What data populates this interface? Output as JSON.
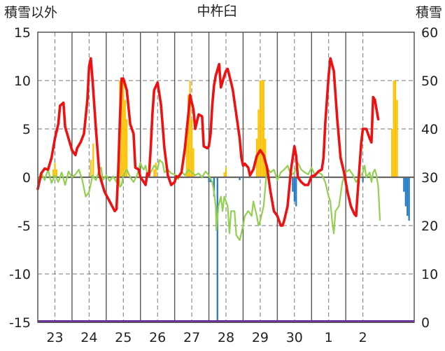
{
  "chart_data": {
    "type": "line",
    "title": "中杵臼",
    "ylabel_left": "積雪以外",
    "ylabel_right": "積雪",
    "y_left_ticks": [
      "15",
      "10",
      "5",
      "0",
      "-5",
      "-10",
      "-15"
    ],
    "y_right_ticks": [
      "60",
      "50",
      "40",
      "30",
      "20",
      "10",
      "0"
    ],
    "ylim_left": [
      -15,
      15
    ],
    "ylim_right": [
      0,
      60
    ],
    "x_tick_labels": [
      "23",
      "24",
      "25",
      "26",
      "27",
      "28",
      "29",
      "30",
      "1",
      "2"
    ],
    "xlim": [
      22.5,
      33.5
    ],
    "grid": true,
    "colors": {
      "red_line": "#ee1111",
      "green_line": "#92d050",
      "orange_bars": "#ffc000",
      "blue_bars": "#1f78c1",
      "snow_baseline": "#7030a0",
      "axis": "#555555",
      "grid": "#777777"
    },
    "red_series": [
      [
        22.5,
        -1.2
      ],
      [
        22.6,
        0.4
      ],
      [
        22.7,
        0.9
      ],
      [
        22.8,
        0.8
      ],
      [
        22.9,
        2.0
      ],
      [
        23.0,
        4.0
      ],
      [
        23.1,
        5.5
      ],
      [
        23.15,
        7.4
      ],
      [
        23.25,
        7.7
      ],
      [
        23.3,
        5.2
      ],
      [
        23.4,
        4.0
      ],
      [
        23.5,
        2.8
      ],
      [
        23.6,
        2.3
      ],
      [
        23.65,
        3.0
      ],
      [
        23.75,
        3.6
      ],
      [
        23.85,
        4.5
      ],
      [
        23.95,
        8.0
      ],
      [
        24.0,
        11.5
      ],
      [
        24.05,
        12.3
      ],
      [
        24.1,
        10.0
      ],
      [
        24.2,
        5.0
      ],
      [
        24.3,
        0.3
      ],
      [
        24.45,
        -1.5
      ],
      [
        24.6,
        -2.5
      ],
      [
        24.75,
        -3.5
      ],
      [
        24.8,
        -3.3
      ],
      [
        24.85,
        0.5
      ],
      [
        24.9,
        6.0
      ],
      [
        24.95,
        10.2
      ],
      [
        25.0,
        10.2
      ],
      [
        25.1,
        9.0
      ],
      [
        25.2,
        5.5
      ],
      [
        25.3,
        4.5
      ],
      [
        25.35,
        1.0
      ],
      [
        25.45,
        0.8
      ],
      [
        25.5,
        0.0
      ],
      [
        25.6,
        -0.5
      ],
      [
        25.65,
        -0.8
      ],
      [
        25.7,
        0.4
      ],
      [
        25.75,
        0.2
      ],
      [
        25.8,
        3.0
      ],
      [
        25.85,
        6.5
      ],
      [
        25.9,
        9.0
      ],
      [
        26.0,
        9.8
      ],
      [
        26.1,
        7.5
      ],
      [
        26.2,
        3.0
      ],
      [
        26.3,
        0.2
      ],
      [
        26.4,
        -0.8
      ],
      [
        26.5,
        -0.5
      ],
      [
        26.55,
        0.1
      ],
      [
        26.6,
        0.0
      ],
      [
        26.7,
        0.5
      ],
      [
        26.8,
        3.0
      ],
      [
        26.9,
        6.5
      ],
      [
        26.95,
        8.5
      ],
      [
        27.05,
        7.0
      ],
      [
        27.1,
        5.0
      ],
      [
        27.2,
        6.5
      ],
      [
        27.3,
        6.3
      ],
      [
        27.35,
        3.2
      ],
      [
        27.45,
        3.0
      ],
      [
        27.5,
        3.2
      ],
      [
        27.55,
        4.5
      ],
      [
        27.6,
        7.5
      ],
      [
        27.65,
        9.5
      ],
      [
        27.7,
        10.5
      ],
      [
        27.8,
        11.7
      ],
      [
        27.85,
        9.3
      ],
      [
        27.95,
        10.5
      ],
      [
        28.0,
        11.0
      ],
      [
        28.05,
        11.2
      ],
      [
        28.15,
        9.8
      ],
      [
        28.2,
        9.0
      ],
      [
        28.3,
        6.5
      ],
      [
        28.4,
        4.0
      ],
      [
        28.45,
        2.0
      ],
      [
        28.5,
        1.2
      ],
      [
        28.55,
        1.4
      ],
      [
        28.65,
        1.0
      ],
      [
        28.7,
        0.2
      ],
      [
        28.8,
        0.8
      ],
      [
        28.9,
        2.2
      ],
      [
        29.0,
        2.8
      ],
      [
        29.1,
        2.3
      ],
      [
        29.2,
        1.0
      ],
      [
        29.3,
        -1.5
      ],
      [
        29.4,
        -3.5
      ],
      [
        29.5,
        -4.0
      ],
      [
        29.55,
        -4.5
      ],
      [
        29.6,
        -5.0
      ],
      [
        29.65,
        -5.0
      ],
      [
        29.7,
        -4.5
      ],
      [
        29.8,
        -3.0
      ],
      [
        29.9,
        0.8
      ],
      [
        30.0,
        3.2
      ],
      [
        30.05,
        2.2
      ],
      [
        30.1,
        0.0
      ],
      [
        30.2,
        -0.5
      ],
      [
        30.3,
        -0.8
      ],
      [
        30.4,
        -0.8
      ],
      [
        30.5,
        0.1
      ],
      [
        30.6,
        0.2
      ],
      [
        30.7,
        0.6
      ],
      [
        30.8,
        0.8
      ],
      [
        30.85,
        2.0
      ],
      [
        30.9,
        5.5
      ],
      [
        31.0,
        10.5
      ],
      [
        31.05,
        12.3
      ],
      [
        31.15,
        11.0
      ],
      [
        31.25,
        6.0
      ],
      [
        31.35,
        2.0
      ],
      [
        31.45,
        0.5
      ],
      [
        31.55,
        -1.5
      ],
      [
        31.65,
        -3.0
      ],
      [
        31.75,
        -3.8
      ],
      [
        31.8,
        -4.0
      ],
      [
        31.85,
        -1.5
      ],
      [
        31.95,
        3.5
      ],
      [
        32.0,
        5.0
      ],
      [
        32.1,
        5.0
      ],
      [
        32.2,
        4.0
      ],
      [
        32.25,
        3.6
      ],
      [
        32.3,
        8.3
      ],
      [
        32.35,
        8.0
      ],
      [
        32.4,
        7.0
      ],
      [
        32.45,
        6.0
      ]
    ],
    "green_series": [
      [
        22.5,
        -0.5
      ],
      [
        22.6,
        0.5
      ],
      [
        22.7,
        -0.3
      ],
      [
        22.8,
        0.8
      ],
      [
        22.9,
        -0.6
      ],
      [
        23.0,
        0.2
      ],
      [
        23.1,
        -0.5
      ],
      [
        23.2,
        0.5
      ],
      [
        23.3,
        -0.8
      ],
      [
        23.4,
        0.6
      ],
      [
        23.5,
        0.0
      ],
      [
        23.6,
        0.3
      ],
      [
        23.7,
        0.8
      ],
      [
        23.8,
        -0.3
      ],
      [
        23.9,
        -2.0
      ],
      [
        24.0,
        -1.5
      ],
      [
        24.1,
        0.2
      ],
      [
        24.2,
        -0.3
      ],
      [
        24.3,
        0.8
      ],
      [
        24.35,
        1.0
      ],
      [
        24.4,
        -0.3
      ],
      [
        24.5,
        0.2
      ],
      [
        24.6,
        -0.4
      ],
      [
        24.7,
        0.1
      ],
      [
        24.8,
        -0.5
      ],
      [
        24.85,
        0.8
      ],
      [
        24.9,
        -1.0
      ],
      [
        24.95,
        -0.8
      ],
      [
        25.0,
        0.2
      ],
      [
        25.1,
        0.8
      ],
      [
        25.2,
        0.0
      ],
      [
        25.3,
        -0.5
      ],
      [
        25.4,
        0.2
      ],
      [
        25.5,
        1.5
      ],
      [
        25.55,
        1.0
      ],
      [
        25.6,
        0.8
      ],
      [
        25.65,
        1.2
      ],
      [
        25.7,
        0.3
      ],
      [
        25.8,
        0.5
      ],
      [
        25.9,
        1.2
      ],
      [
        26.0,
        0.8
      ],
      [
        26.05,
        1.8
      ],
      [
        26.15,
        1.5
      ],
      [
        26.2,
        0.5
      ],
      [
        26.3,
        0.8
      ],
      [
        26.4,
        0.4
      ],
      [
        26.5,
        0.3
      ],
      [
        26.6,
        -0.2
      ],
      [
        26.7,
        0.6
      ],
      [
        26.8,
        0.2
      ],
      [
        26.9,
        0.8
      ],
      [
        27.0,
        0.5
      ],
      [
        27.1,
        0.2
      ],
      [
        27.2,
        0.4
      ],
      [
        27.3,
        0.0
      ],
      [
        27.4,
        0.6
      ],
      [
        27.5,
        0.2
      ],
      [
        27.6,
        -0.5
      ],
      [
        27.65,
        -1.5
      ],
      [
        27.7,
        -3.0
      ],
      [
        27.72,
        -5.5
      ],
      [
        27.78,
        -3.0
      ],
      [
        27.85,
        -2.0
      ],
      [
        27.9,
        -3.5
      ],
      [
        27.95,
        -2.0
      ],
      [
        28.05,
        -3.0
      ],
      [
        28.1,
        -5.8
      ],
      [
        28.15,
        -3.5
      ],
      [
        28.25,
        -3.5
      ],
      [
        28.3,
        -6.0
      ],
      [
        28.4,
        -6.5
      ],
      [
        28.5,
        -5.0
      ],
      [
        28.55,
        -4.0
      ],
      [
        28.65,
        -3.5
      ],
      [
        28.75,
        -4.0
      ],
      [
        28.8,
        -2.5
      ],
      [
        28.9,
        -4.0
      ],
      [
        28.95,
        -5.0
      ],
      [
        29.0,
        -4.5
      ],
      [
        29.1,
        -3.0
      ],
      [
        29.2,
        1.0
      ],
      [
        29.3,
        0.5
      ],
      [
        29.4,
        0.8
      ],
      [
        29.5,
        -0.3
      ],
      [
        29.6,
        0.5
      ],
      [
        29.7,
        0.8
      ],
      [
        29.8,
        1.2
      ],
      [
        29.9,
        0.2
      ],
      [
        30.0,
        0.5
      ],
      [
        30.1,
        1.5
      ],
      [
        30.2,
        0.8
      ],
      [
        30.3,
        0.5
      ],
      [
        30.4,
        0.3
      ],
      [
        30.5,
        1.0
      ],
      [
        30.6,
        0.2
      ],
      [
        30.7,
        0.5
      ],
      [
        30.8,
        0.3
      ],
      [
        30.9,
        -0.5
      ],
      [
        31.0,
        -2.0
      ],
      [
        31.05,
        -2.5
      ],
      [
        31.1,
        -4.5
      ],
      [
        31.15,
        -5.8
      ],
      [
        31.2,
        -3.5
      ],
      [
        31.3,
        -3.0
      ],
      [
        31.4,
        -0.5
      ],
      [
        31.5,
        0.5
      ],
      [
        31.6,
        0.8
      ],
      [
        31.7,
        0.3
      ],
      [
        31.8,
        -0.5
      ],
      [
        31.9,
        0.0
      ],
      [
        32.0,
        0.5
      ],
      [
        32.05,
        1.2
      ],
      [
        32.1,
        0.0
      ],
      [
        32.2,
        0.5
      ],
      [
        32.25,
        -0.5
      ],
      [
        32.3,
        0.5
      ],
      [
        32.35,
        0.8
      ],
      [
        32.4,
        0.2
      ],
      [
        32.45,
        -1.0
      ],
      [
        32.5,
        -4.5
      ]
    ],
    "orange_bars": [
      [
        22.95,
        0.8
      ],
      [
        23.0,
        1.5
      ],
      [
        23.05,
        0.8
      ],
      [
        24.05,
        1.8
      ],
      [
        24.12,
        3.5
      ],
      [
        24.85,
        1.5
      ],
      [
        24.9,
        10.0
      ],
      [
        24.95,
        10.0
      ],
      [
        25.0,
        10.0
      ],
      [
        25.05,
        8.0
      ],
      [
        25.1,
        6.0
      ],
      [
        25.9,
        0.8
      ],
      [
        25.95,
        1.5
      ],
      [
        26.85,
        5.0
      ],
      [
        26.9,
        8.5
      ],
      [
        26.95,
        10.0
      ],
      [
        27.0,
        6.0
      ],
      [
        27.05,
        3.0
      ],
      [
        27.95,
        0.5
      ],
      [
        28.0,
        1.0
      ],
      [
        28.9,
        4.0
      ],
      [
        28.95,
        7.0
      ],
      [
        29.0,
        10.0
      ],
      [
        29.05,
        10.0
      ],
      [
        29.1,
        10.0
      ],
      [
        29.15,
        4.0
      ],
      [
        32.85,
        5.0
      ],
      [
        32.9,
        10.0
      ],
      [
        32.95,
        10.0
      ],
      [
        33.0,
        8.0
      ]
    ],
    "blue_bars": [
      [
        27.5,
        -0.5
      ],
      [
        27.55,
        -0.5
      ],
      [
        27.65,
        -2.0
      ],
      [
        27.75,
        -15.0
      ],
      [
        28.4,
        -0.3
      ],
      [
        29.95,
        -1.5
      ],
      [
        30.0,
        -2.5
      ],
      [
        30.05,
        -3.0
      ],
      [
        31.5,
        -0.5
      ],
      [
        32.0,
        -0.5
      ],
      [
        33.2,
        -1.5
      ],
      [
        33.25,
        -3.0
      ],
      [
        33.3,
        -4.0
      ],
      [
        33.35,
        -4.5
      ]
    ]
  }
}
